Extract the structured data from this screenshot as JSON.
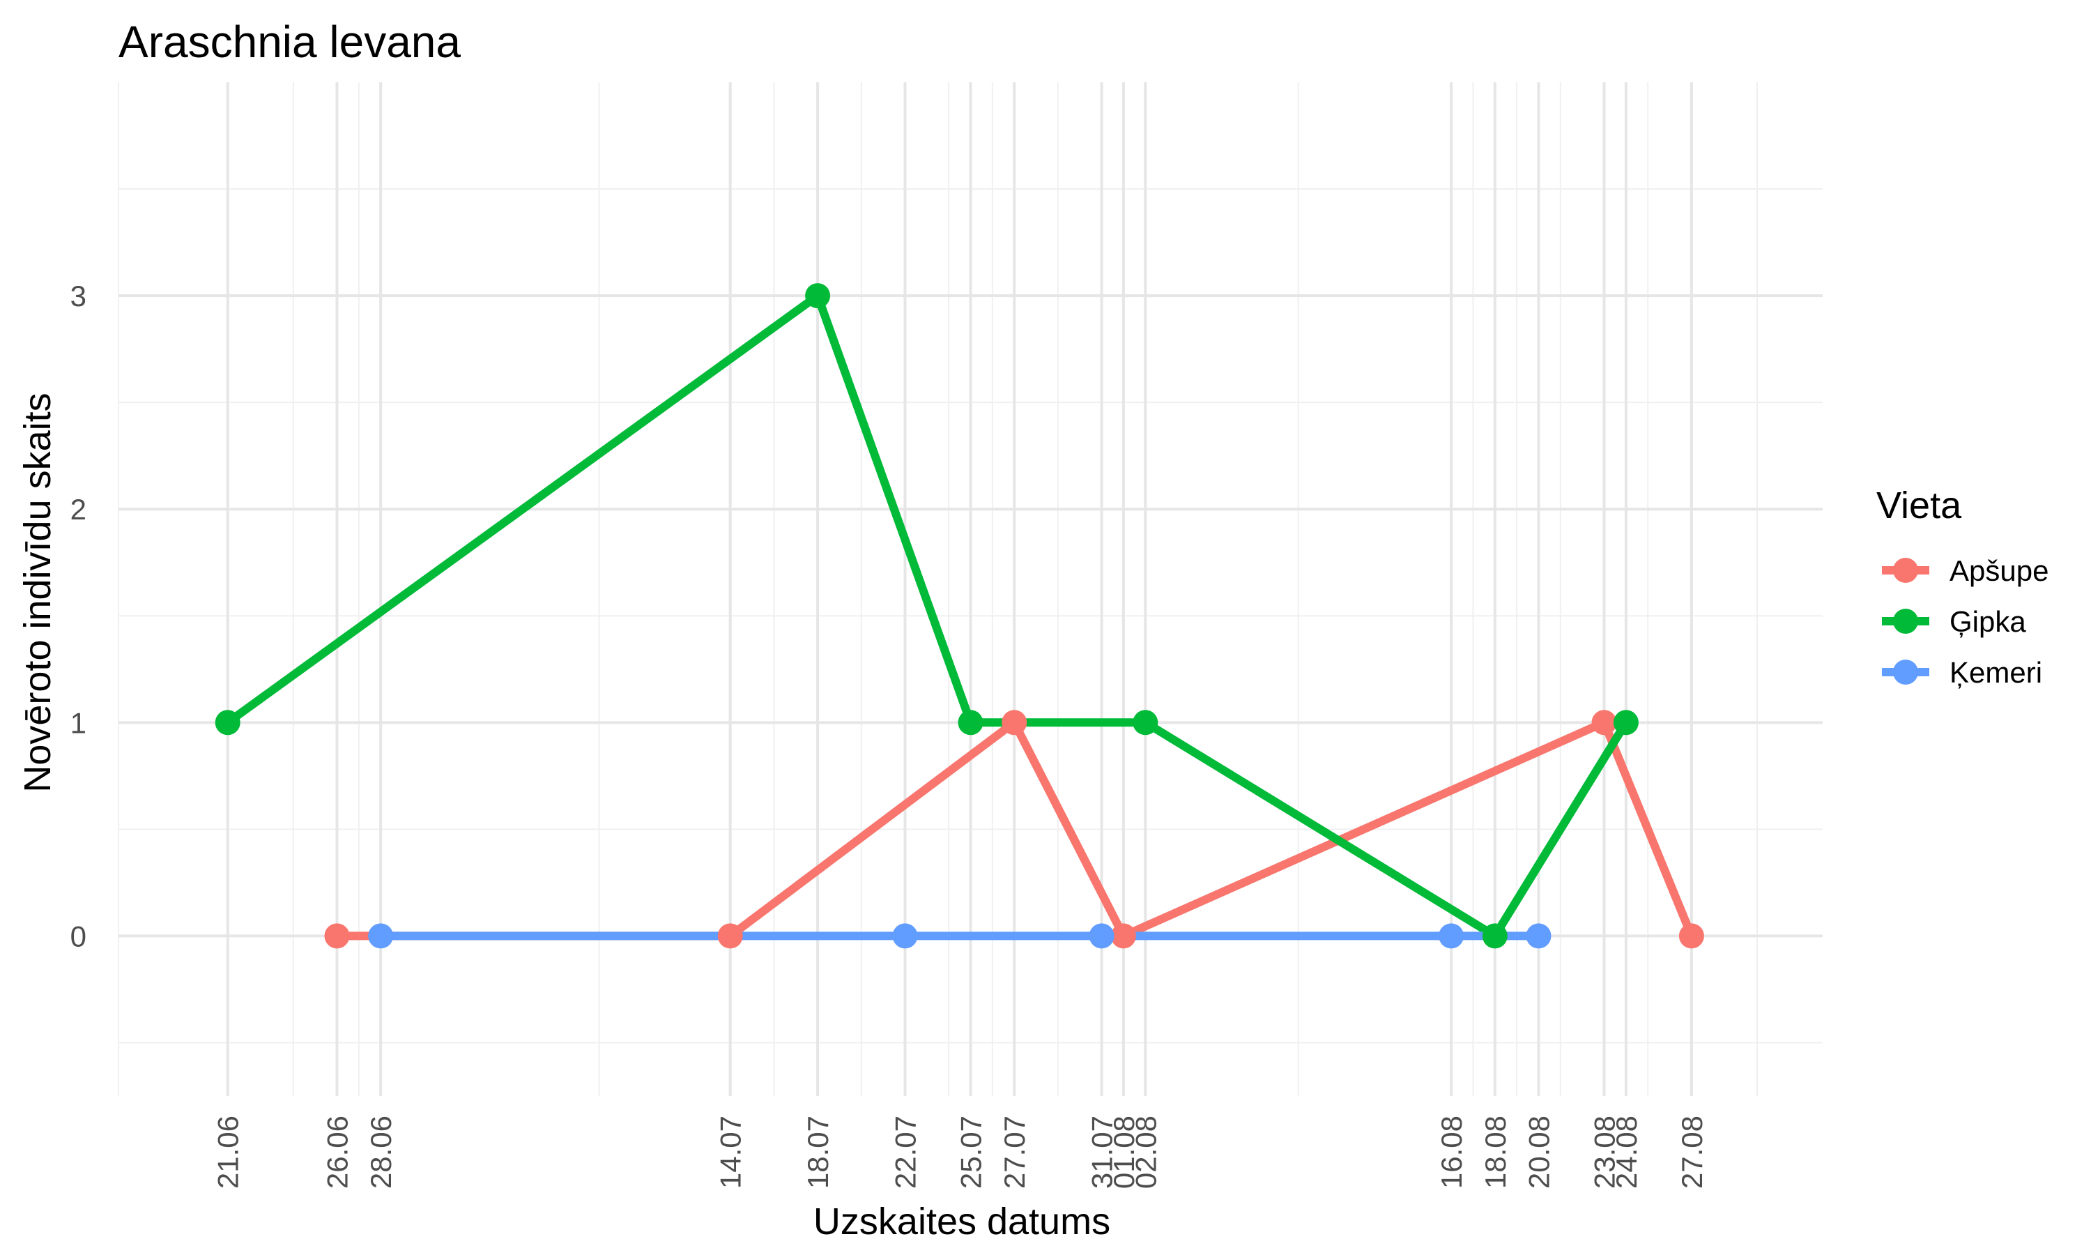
{
  "chart_data": {
    "type": "line",
    "title": "Araschnia levana",
    "xlabel": "Uzskaites datums",
    "ylabel": "Novēroto indivīdu skaits",
    "x_axis": {
      "type": "date",
      "range": [
        "2024-06-16",
        "2024-09-02"
      ],
      "tick_dates": [
        "2024-06-21",
        "2024-06-26",
        "2024-06-28",
        "2024-07-14",
        "2024-07-18",
        "2024-07-22",
        "2024-07-25",
        "2024-07-27",
        "2024-07-31",
        "2024-08-01",
        "2024-08-02",
        "2024-08-16",
        "2024-08-18",
        "2024-08-20",
        "2024-08-23",
        "2024-08-24",
        "2024-08-27"
      ],
      "tick_labels": [
        "21.06",
        "26.06",
        "28.06",
        "14.07",
        "18.07",
        "22.07",
        "25.07",
        "27.07",
        "31.07",
        "01.08",
        "02.08",
        "16.08",
        "18.08",
        "20.08",
        "23.08",
        "24.08",
        "27.08"
      ],
      "minor_grid_dates": [
        "2024-06-16",
        "2024-06-24",
        "2024-06-27",
        "2024-07-08",
        "2024-07-16",
        "2024-07-20",
        "2024-07-24",
        "2024-07-26",
        "2024-07-29",
        "2024-07-31",
        "2024-08-01",
        "2024-08-09",
        "2024-08-17",
        "2024-08-19",
        "2024-08-21",
        "2024-08-23",
        "2024-08-25",
        "2024-08-30"
      ]
    },
    "y_axis": {
      "range": [
        -0.75,
        4
      ],
      "ticks": [
        0,
        1,
        2,
        3
      ],
      "tick_labels": [
        "0",
        "1",
        "2",
        "3"
      ],
      "minor_grid": [
        -0.5,
        0.5,
        1.5,
        2.5,
        3.5
      ]
    },
    "grid": true,
    "legend": {
      "title": "Vieta",
      "position": "right"
    },
    "series": [
      {
        "name": "Apšupe",
        "color": "#F8766D",
        "points": [
          {
            "x": "2024-06-26",
            "y": 0
          },
          {
            "x": "2024-07-14",
            "y": 0
          },
          {
            "x": "2024-07-27",
            "y": 1
          },
          {
            "x": "2024-08-01",
            "y": 0
          },
          {
            "x": "2024-08-23",
            "y": 1
          },
          {
            "x": "2024-08-27",
            "y": 0
          }
        ]
      },
      {
        "name": "Ģipka",
        "color": "#00BA38",
        "points": [
          {
            "x": "2024-06-21",
            "y": 1
          },
          {
            "x": "2024-07-18",
            "y": 3
          },
          {
            "x": "2024-07-25",
            "y": 1
          },
          {
            "x": "2024-08-02",
            "y": 1
          },
          {
            "x": "2024-08-18",
            "y": 0
          },
          {
            "x": "2024-08-24",
            "y": 1
          }
        ]
      },
      {
        "name": "Ķemeri",
        "color": "#619CFF",
        "points": [
          {
            "x": "2024-06-28",
            "y": 0
          },
          {
            "x": "2024-07-22",
            "y": 0
          },
          {
            "x": "2024-07-31",
            "y": 0
          },
          {
            "x": "2024-08-16",
            "y": 0
          },
          {
            "x": "2024-08-20",
            "y": 0
          }
        ]
      }
    ]
  }
}
